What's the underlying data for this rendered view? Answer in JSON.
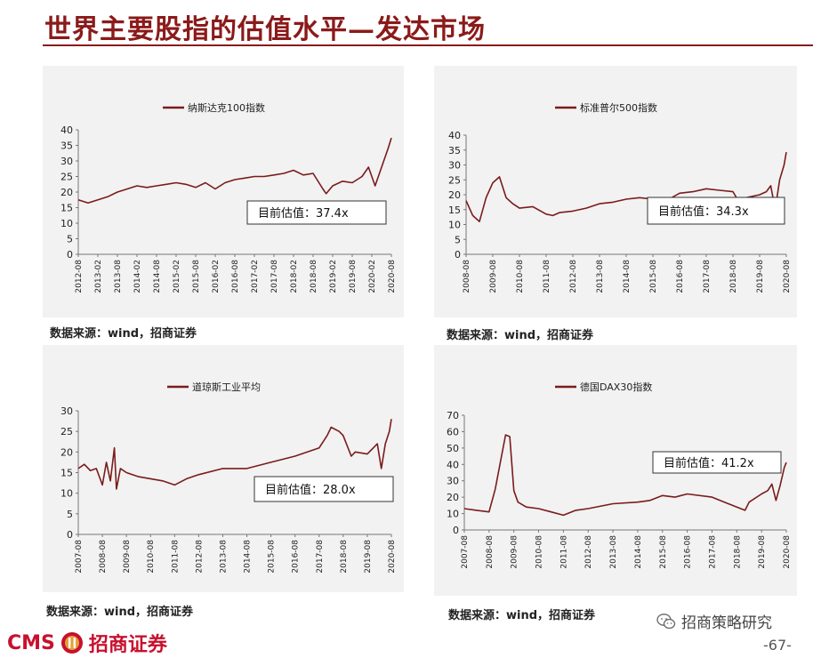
{
  "page": {
    "title": "世界主要股指的估值水平—发达市场",
    "page_number": "-67-",
    "brand_cms": "CMS",
    "brand_name": "招商证券",
    "wechat_name": "招商策略研究",
    "colors": {
      "accent": "#8b1a1a",
      "series": "#7a1b1b",
      "panel_bg": "#f2f2f2"
    }
  },
  "chart_data": [
    {
      "id": "nasdaq",
      "type": "line",
      "legend": "纳斯达克100指数",
      "callout": "目前估值：37.4x",
      "source": "数据来源：wind，招商证券",
      "ylim": [
        0,
        40
      ],
      "yticks": [
        0,
        5,
        10,
        15,
        20,
        25,
        30,
        35,
        40
      ],
      "xticks": [
        "2012-08",
        "2013-02",
        "2013-08",
        "2014-02",
        "2014-08",
        "2015-02",
        "2015-08",
        "2016-02",
        "2016-08",
        "2017-02",
        "2017-08",
        "2018-02",
        "2018-08",
        "2019-02",
        "2019-08",
        "2020-02",
        "2020-08"
      ],
      "x": [
        "2012-08",
        "2012-11",
        "2013-02",
        "2013-05",
        "2013-08",
        "2013-11",
        "2014-02",
        "2014-05",
        "2014-08",
        "2014-11",
        "2015-02",
        "2015-05",
        "2015-08",
        "2015-11",
        "2016-02",
        "2016-05",
        "2016-08",
        "2016-11",
        "2017-02",
        "2017-05",
        "2017-08",
        "2017-11",
        "2018-02",
        "2018-05",
        "2018-08",
        "2018-11",
        "2018-12",
        "2019-02",
        "2019-05",
        "2019-08",
        "2019-11",
        "2020-01",
        "2020-03",
        "2020-05",
        "2020-07",
        "2020-08"
      ],
      "values": [
        17.5,
        16.5,
        17.5,
        18.5,
        20,
        21,
        22,
        21.5,
        22,
        22.5,
        23,
        22.5,
        21.5,
        23,
        21,
        23,
        24,
        24.5,
        25,
        25,
        25.5,
        26,
        27,
        25.5,
        26,
        21,
        19.5,
        22,
        23.5,
        23,
        25,
        28,
        22,
        28,
        34,
        37.4
      ]
    },
    {
      "id": "sp500",
      "type": "line",
      "legend": "标准普尔500指数",
      "callout": "目前估值：34.3x",
      "source": "数据来源：wind，招商证券",
      "ylim": [
        0,
        40
      ],
      "yticks": [
        0,
        5,
        10,
        15,
        20,
        25,
        30,
        35,
        40
      ],
      "xticks": [
        "2008-08",
        "2009-08",
        "2010-08",
        "2011-08",
        "2012-08",
        "2013-08",
        "2014-08",
        "2015-08",
        "2016-08",
        "2017-08",
        "2018-08",
        "2019-08",
        "2020-08"
      ],
      "x": [
        "2008-08",
        "2008-11",
        "2009-02",
        "2009-05",
        "2009-08",
        "2009-11",
        "2010-02",
        "2010-05",
        "2010-08",
        "2011-02",
        "2011-08",
        "2011-11",
        "2012-02",
        "2012-08",
        "2013-02",
        "2013-08",
        "2014-02",
        "2014-08",
        "2015-02",
        "2015-08",
        "2015-11",
        "2016-02",
        "2016-08",
        "2017-02",
        "2017-08",
        "2018-02",
        "2018-08",
        "2018-12",
        "2019-02",
        "2019-08",
        "2019-11",
        "2020-01",
        "2020-03",
        "2020-05",
        "2020-07",
        "2020-08"
      ],
      "values": [
        18,
        13,
        11,
        19,
        24,
        26,
        19,
        17,
        15.5,
        16,
        13.5,
        13,
        14,
        14.5,
        15.5,
        17,
        17.5,
        18.5,
        19,
        18.5,
        17,
        18,
        20.5,
        21,
        22,
        21.5,
        21,
        16,
        19,
        20,
        21,
        23,
        15,
        25,
        30,
        34.3
      ]
    },
    {
      "id": "dow",
      "type": "line",
      "legend": "道琼斯工业平均",
      "callout": "目前估值：28.0x",
      "source": "数据来源：wind，招商证券",
      "ylim": [
        0,
        30
      ],
      "yticks": [
        0,
        5,
        10,
        15,
        20,
        25,
        30
      ],
      "xticks": [
        "2007-08",
        "2008-08",
        "2009-08",
        "2010-08",
        "2011-08",
        "2012-08",
        "2013-08",
        "2014-08",
        "2015-08",
        "2016-08",
        "2017-08",
        "2018-08",
        "2019-08",
        "2020-08"
      ],
      "x": [
        "2007-08",
        "2007-11",
        "2008-02",
        "2008-05",
        "2008-08",
        "2008-10",
        "2008-12",
        "2009-02",
        "2009-03",
        "2009-05",
        "2009-08",
        "2010-02",
        "2010-08",
        "2011-02",
        "2011-08",
        "2012-02",
        "2012-08",
        "2013-08",
        "2014-08",
        "2015-08",
        "2016-08",
        "2017-08",
        "2017-12",
        "2018-02",
        "2018-06",
        "2018-08",
        "2018-12",
        "2019-02",
        "2019-08",
        "2019-11",
        "2020-01",
        "2020-03",
        "2020-05",
        "2020-07",
        "2020-08"
      ],
      "values": [
        16,
        17,
        15.5,
        16,
        12,
        17.5,
        13,
        21,
        11,
        16,
        15,
        14,
        13.5,
        13,
        12,
        13.5,
        14.5,
        16,
        16,
        17.5,
        19,
        21,
        24,
        26,
        25,
        24,
        19,
        20,
        19.5,
        21,
        22,
        16,
        22,
        25,
        28
      ]
    },
    {
      "id": "dax",
      "type": "line",
      "legend": "德国DAX30指数",
      "callout": "目前估值：41.2x",
      "source": "数据来源：wind，招商证券",
      "ylim": [
        0,
        70
      ],
      "yticks": [
        0,
        10,
        20,
        30,
        40,
        50,
        60,
        70
      ],
      "xticks": [
        "2007-08",
        "2008-08",
        "2009-08",
        "2010-08",
        "2011-08",
        "2012-08",
        "2013-08",
        "2014-08",
        "2015-08",
        "2016-08",
        "2017-08",
        "2018-08",
        "2019-08",
        "2020-08"
      ],
      "x": [
        "2007-08",
        "2008-02",
        "2008-08",
        "2008-11",
        "2009-02",
        "2009-04",
        "2009-06",
        "2009-08",
        "2009-10",
        "2010-02",
        "2010-08",
        "2011-02",
        "2011-08",
        "2012-02",
        "2012-08",
        "2013-08",
        "2014-08",
        "2015-02",
        "2015-08",
        "2016-02",
        "2016-08",
        "2017-08",
        "2018-02",
        "2018-08",
        "2018-12",
        "2019-02",
        "2019-08",
        "2019-11",
        "2020-01",
        "2020-03",
        "2020-05",
        "2020-07",
        "2020-08"
      ],
      "values": [
        13,
        12,
        11,
        25,
        45,
        58,
        57,
        24,
        17,
        14,
        13,
        11,
        9,
        12,
        13,
        16,
        17,
        18,
        21,
        20,
        22,
        20,
        17,
        14,
        12,
        17,
        22,
        24,
        28,
        18,
        27,
        38,
        41.2
      ]
    }
  ]
}
